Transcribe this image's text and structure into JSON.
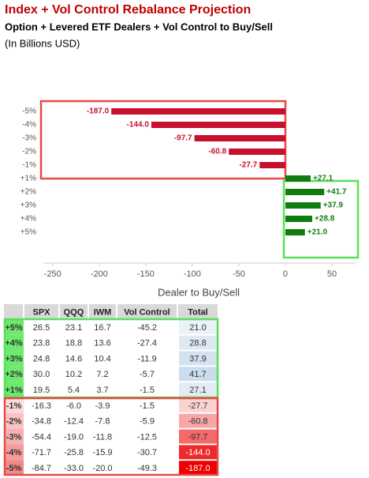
{
  "header": {
    "title": "Index + Vol Control Rebalance Projection",
    "subtitle": "Option + Levered ETF Dealers + Vol Control to Buy/Sell",
    "note": "(In Billions USD)"
  },
  "chart_data": {
    "type": "hbar",
    "xlabel": "Dealer to Buy/Sell",
    "categories": [
      "-5%",
      "-4%",
      "-3%",
      "-2%",
      "-1%",
      "+1%",
      "+2%",
      "+3%",
      "+4%",
      "+5%"
    ],
    "values": [
      -187.0,
      -144.0,
      -97.7,
      -60.8,
      -27.7,
      27.1,
      41.7,
      37.9,
      28.8,
      21.0
    ],
    "value_labels": [
      "-187.0",
      "-144.0",
      "-97.7",
      "-60.8",
      "-27.7",
      "+27.1",
      "+41.7",
      "+37.9",
      "+28.8",
      "+21.0"
    ],
    "color_negative": "#c8102e",
    "color_positive": "#107c10",
    "xlim": [
      -260,
      75
    ],
    "xticks": [
      -250,
      -200,
      -150,
      -100,
      -50,
      0,
      50
    ],
    "grid": false
  },
  "table": {
    "columns": [
      "",
      "SPX",
      "QQQ",
      "IWM",
      "Vol Control",
      "Total"
    ],
    "rows": [
      [
        "+5%",
        "26.5",
        "23.1",
        "16.7",
        "-45.2",
        "21.0"
      ],
      [
        "+4%",
        "23.8",
        "18.8",
        "13.6",
        "-27.4",
        "28.8"
      ],
      [
        "+3%",
        "24.8",
        "14.6",
        "10.4",
        "-11.9",
        "37.9"
      ],
      [
        "+2%",
        "30.0",
        "10.2",
        "7.2",
        "-5.7",
        "41.7"
      ],
      [
        "+1%",
        "19.5",
        "5.4",
        "3.7",
        "-1.5",
        "27.1"
      ],
      [
        "-1%",
        "-16.3",
        "-6.0",
        "-3.9",
        "-1.5",
        "-27.7"
      ],
      [
        "-2%",
        "-34.8",
        "-12.4",
        "-7.8",
        "-5.9",
        "-60.8"
      ],
      [
        "-3%",
        "-54.4",
        "-19.0",
        "-11.8",
        "-12.5",
        "-97.7"
      ],
      [
        "-4%",
        "-71.7",
        "-25.8",
        "-15.9",
        "-30.7",
        "-144.0"
      ],
      [
        "-5%",
        "-84.7",
        "-33.0",
        "-20.0",
        "-49.3",
        "-187.0"
      ]
    ]
  }
}
